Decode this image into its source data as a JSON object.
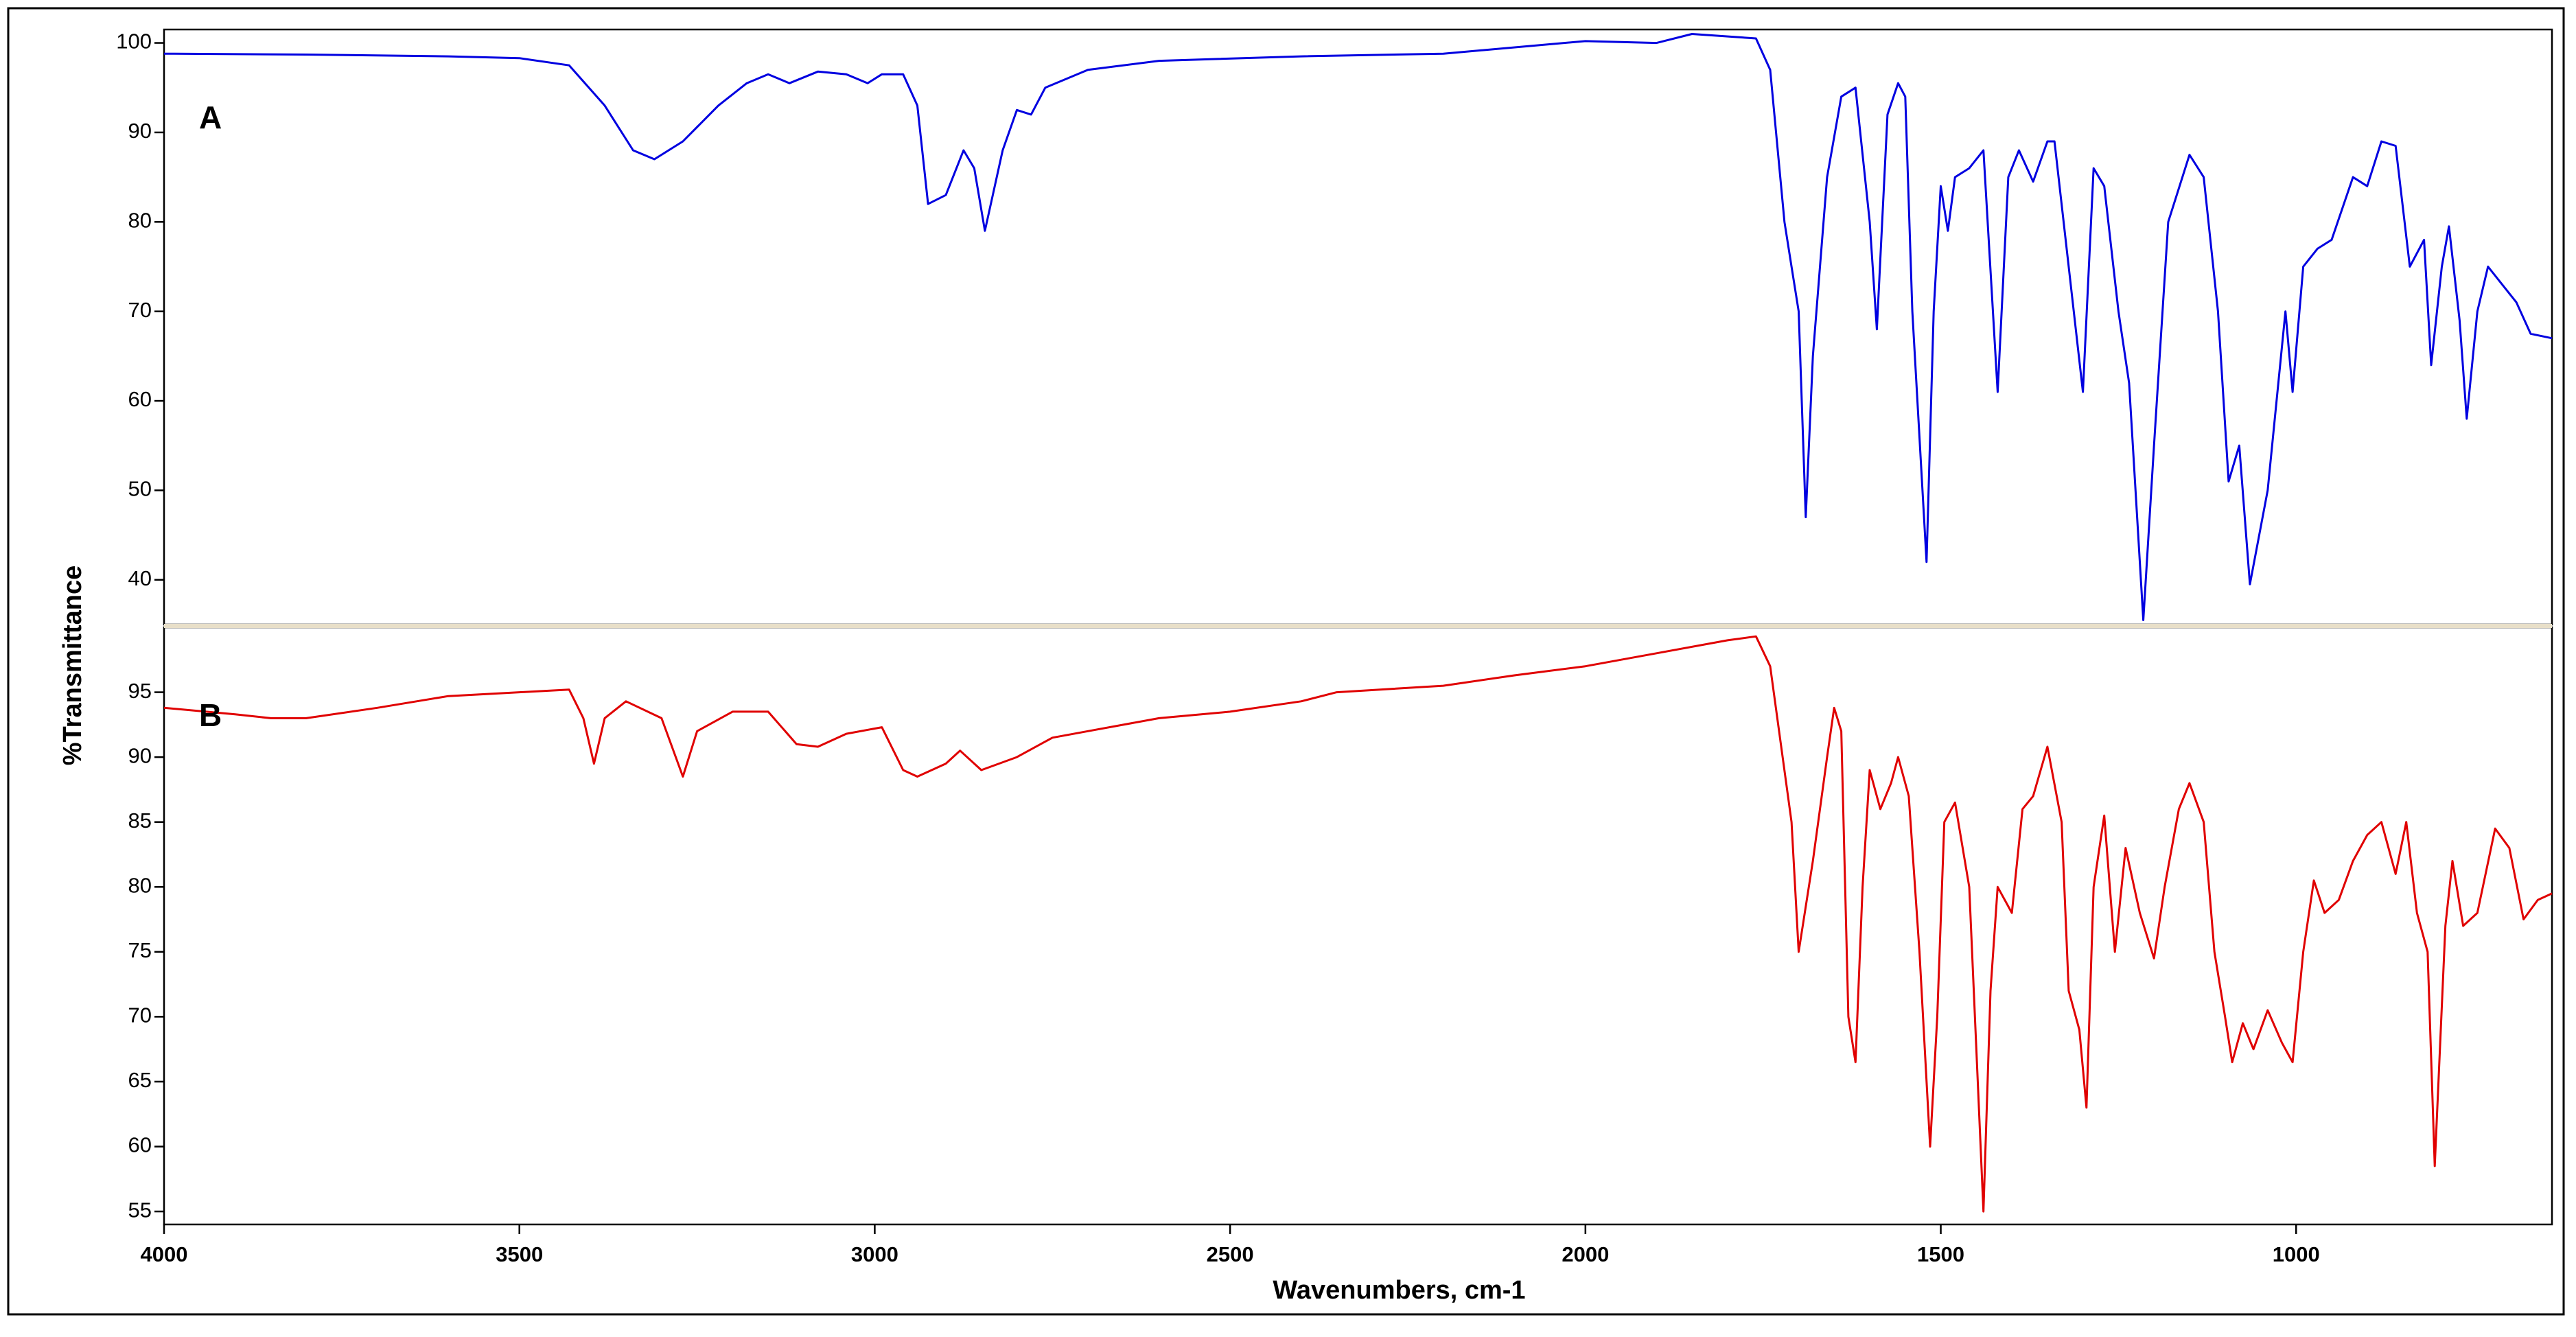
{
  "chart_data": [
    {
      "type": "line",
      "annotation": "A",
      "ylabel": "%Transmittance",
      "xlim": [
        4000,
        640
      ],
      "ylim": [
        35,
        101.5
      ],
      "yticks": [
        40,
        50,
        60,
        70,
        80,
        90,
        100
      ],
      "x": [
        4000,
        3800,
        3600,
        3500,
        3430,
        3380,
        3340,
        3310,
        3270,
        3220,
        3180,
        3150,
        3120,
        3080,
        3040,
        3010,
        2990,
        2960,
        2940,
        2925,
        2900,
        2875,
        2860,
        2845,
        2820,
        2800,
        2780,
        2760,
        2700,
        2600,
        2400,
        2200,
        2000,
        1900,
        1850,
        1760,
        1740,
        1720,
        1710,
        1700,
        1690,
        1680,
        1660,
        1640,
        1620,
        1600,
        1590,
        1575,
        1560,
        1550,
        1540,
        1520,
        1510,
        1500,
        1490,
        1480,
        1460,
        1440,
        1420,
        1405,
        1390,
        1370,
        1350,
        1340,
        1320,
        1300,
        1285,
        1270,
        1250,
        1235,
        1215,
        1200,
        1180,
        1150,
        1130,
        1110,
        1095,
        1080,
        1065,
        1040,
        1015,
        1005,
        990,
        970,
        950,
        920,
        900,
        880,
        860,
        840,
        820,
        810,
        795,
        785,
        770,
        760,
        745,
        730,
        710,
        690,
        670,
        640
      ],
      "series": [
        {
          "color": "#0000e0",
          "values": [
            98.8,
            98.7,
            98.5,
            98.3,
            97.5,
            93,
            88,
            87,
            89,
            93,
            95.5,
            96.5,
            95.5,
            96.8,
            96.5,
            95.5,
            96.5,
            96.5,
            93,
            82,
            83,
            88,
            86,
            79,
            88,
            92.5,
            92,
            95,
            97,
            98,
            98.5,
            98.8,
            100.2,
            100,
            101,
            100.5,
            97,
            80,
            75,
            70,
            47,
            65,
            85,
            94,
            95,
            80,
            68,
            92,
            95.5,
            94,
            70,
            42,
            70,
            84,
            79,
            85,
            86,
            88,
            61,
            85,
            88,
            84.5,
            89,
            89,
            75,
            61,
            86,
            84,
            70,
            62,
            35.5,
            55,
            80,
            87.5,
            85,
            70,
            51,
            55,
            39.5,
            50,
            70,
            61,
            75,
            77,
            78,
            85,
            84,
            89,
            88.5,
            75,
            78,
            64,
            75,
            79.5,
            69,
            58,
            70,
            75,
            73,
            71,
            67.5,
            67
          ]
        }
      ]
    },
    {
      "type": "line",
      "annotation": "B",
      "xlabel": "Wavenumbers, cm-1",
      "xlim": [
        4000,
        640
      ],
      "xticks": [
        4000,
        3500,
        3000,
        2500,
        2000,
        1500,
        1000
      ],
      "ylim": [
        54,
        100
      ],
      "yticks": [
        55,
        60,
        65,
        70,
        75,
        80,
        85,
        90,
        95
      ],
      "x": [
        4000,
        3900,
        3850,
        3800,
        3700,
        3600,
        3500,
        3430,
        3410,
        3395,
        3380,
        3350,
        3300,
        3270,
        3250,
        3200,
        3150,
        3110,
        3080,
        3040,
        2990,
        2960,
        2940,
        2900,
        2880,
        2850,
        2800,
        2750,
        2700,
        2600,
        2500,
        2400,
        2350,
        2200,
        2100,
        2000,
        1900,
        1800,
        1760,
        1740,
        1710,
        1700,
        1680,
        1660,
        1650,
        1640,
        1630,
        1620,
        1610,
        1600,
        1585,
        1570,
        1560,
        1545,
        1530,
        1515,
        1505,
        1495,
        1480,
        1460,
        1440,
        1430,
        1420,
        1400,
        1385,
        1370,
        1350,
        1330,
        1320,
        1305,
        1295,
        1285,
        1270,
        1255,
        1240,
        1220,
        1200,
        1185,
        1165,
        1150,
        1130,
        1115,
        1100,
        1090,
        1075,
        1060,
        1040,
        1020,
        1005,
        990,
        975,
        960,
        940,
        920,
        900,
        880,
        860,
        845,
        830,
        815,
        805,
        790,
        780,
        765,
        745,
        720,
        700,
        680,
        660,
        640
      ],
      "series": [
        {
          "color": "#e00000",
          "values": [
            93.8,
            93.3,
            93,
            93,
            93.8,
            94.7,
            95,
            95.2,
            93,
            89.5,
            93,
            94.3,
            93,
            88.5,
            92,
            93.5,
            93.5,
            91,
            90.8,
            91.8,
            92.3,
            89,
            88.5,
            89.5,
            90.5,
            89,
            90,
            91.5,
            92,
            93,
            93.5,
            94.3,
            95,
            95.5,
            96.3,
            97,
            98,
            99,
            99.3,
            97,
            85,
            75,
            82,
            90,
            93.8,
            92,
            70,
            66.5,
            80,
            89,
            86,
            88,
            90,
            87,
            75,
            60,
            70,
            85,
            86.5,
            80,
            55,
            72,
            80,
            78,
            86,
            87,
            90.8,
            85,
            72,
            69,
            63,
            80,
            85.5,
            75,
            83,
            78,
            74.5,
            80,
            86,
            88,
            85,
            75,
            70,
            66.5,
            69.5,
            67.5,
            70.5,
            68,
            66.5,
            75,
            80.5,
            78,
            79,
            82,
            84,
            85,
            81,
            85,
            78,
            75,
            58.5,
            77,
            82,
            77,
            78,
            84.5,
            83,
            77.5,
            79,
            79.5
          ]
        }
      ]
    }
  ]
}
